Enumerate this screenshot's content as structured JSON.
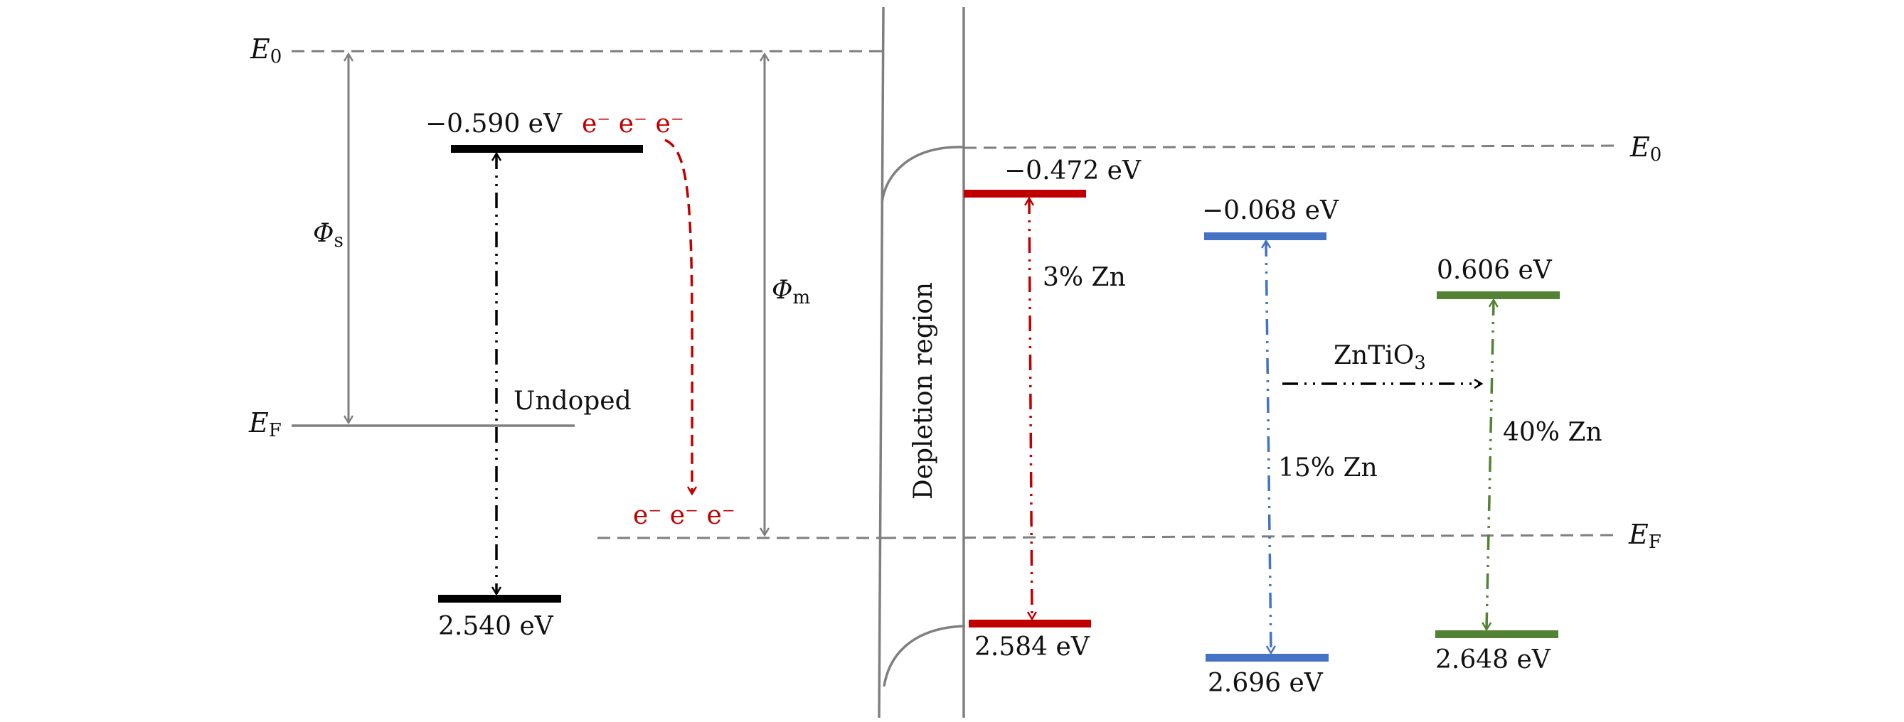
{
  "left": {
    "e0_label": "E",
    "e0_sub": "0",
    "ef_label": "E",
    "ef_sub": "F",
    "phi_s_label": "Φ",
    "phi_s_sub": "s",
    "phi_m_label": "Φ",
    "phi_m_sub": "m",
    "top_level_value": "−0.590 eV",
    "electrons_top": "e⁻ e⁻ e⁻",
    "bottom_level_value": "2.540 eV",
    "undoped_label": "Undoped",
    "electrons_bottom": "e⁻ e⁻ e⁻"
  },
  "middle": {
    "depletion_label": "Depletion region"
  },
  "right": {
    "e0_label": "E",
    "e0_sub": "0",
    "ef_label": "E",
    "ef_sub": "F",
    "zn3_top_value": "−0.472 eV",
    "zn3_bottom_value": "2.584 eV",
    "zn3_label": "3% Zn",
    "zn15_top_value": "−0.068 eV",
    "zn15_bottom_value": "2.696 eV",
    "zn15_label": "15% Zn",
    "zn40_top_value": "0.606 eV",
    "zn40_bottom_value": "2.648 eV",
    "zn40_label": "40% Zn",
    "zntio3_label": "ZnTiO",
    "zntio3_sub": "3"
  },
  "colors": {
    "black": "#000000",
    "gray": "#7f7f7f",
    "red": "#c00000",
    "blue": "#4472c4",
    "green": "#548235"
  }
}
